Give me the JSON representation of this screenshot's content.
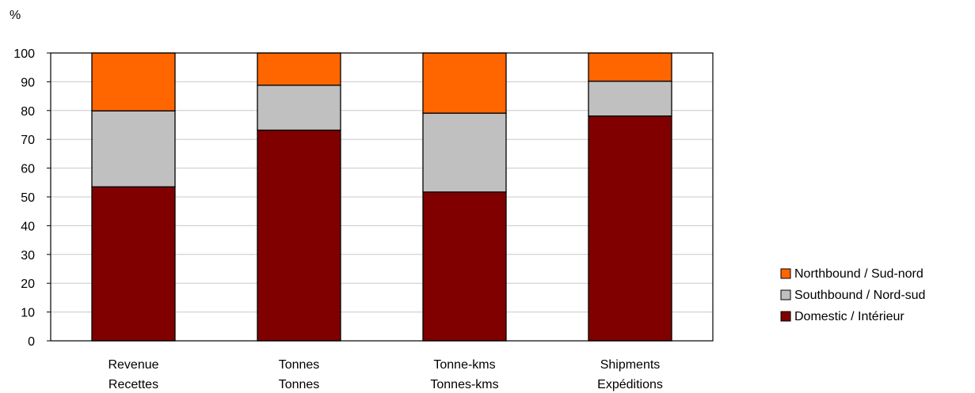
{
  "chart_data": {
    "type": "bar",
    "stacked": true,
    "unit_label": "%",
    "ylim": [
      0,
      100
    ],
    "yticks": [
      0,
      10,
      20,
      30,
      40,
      50,
      60,
      70,
      80,
      90,
      100
    ],
    "grid": true,
    "legend_position": "right",
    "categories": [
      [
        "Revenue",
        "Recettes"
      ],
      [
        "Tonnes",
        "Tonnes"
      ],
      [
        "Tonne-kms",
        "Tonnes-kms"
      ],
      [
        "Shipments",
        "Expéditions"
      ]
    ],
    "series": [
      {
        "name": "Domestic / Intérieur",
        "color": "#800000",
        "values": [
          53.5,
          73.2,
          51.7,
          78.1
        ]
      },
      {
        "name": "Southbound / Nord-sud",
        "color": "#C0C0C0",
        "values": [
          26.4,
          15.6,
          27.4,
          12.1
        ]
      },
      {
        "name": "Northbound / Sud-nord",
        "color": "#FF6600",
        "values": [
          20.1,
          11.2,
          20.9,
          9.8
        ]
      }
    ],
    "legend_order": [
      "Northbound / Sud-nord",
      "Southbound / Nord-sud",
      "Domestic / Intérieur"
    ]
  }
}
